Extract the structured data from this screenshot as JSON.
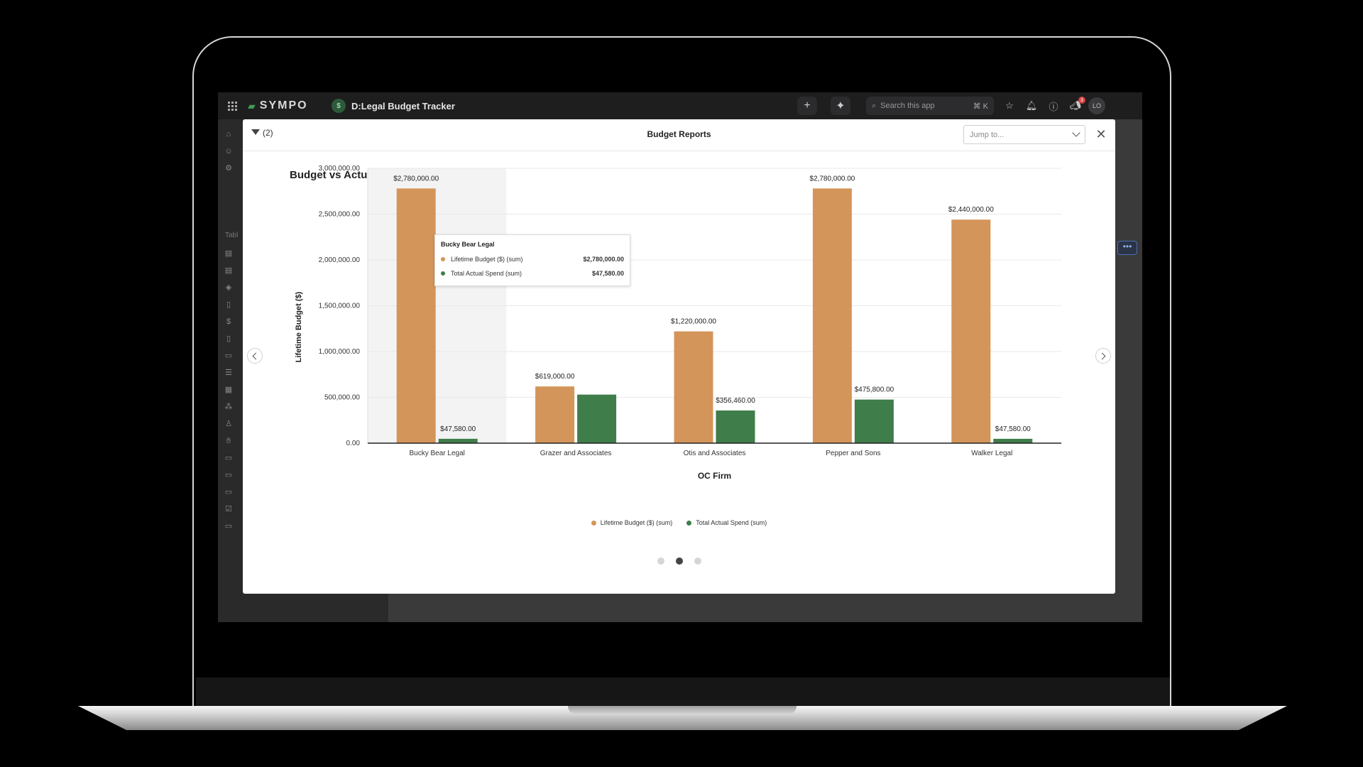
{
  "app": {
    "brand": "SYMPO",
    "title": "D:Legal Budget Tracker",
    "search_placeholder": "Search this app",
    "search_shortcut": "⌘ K",
    "notification_count": "3",
    "user_initials": "LO",
    "sidebar_section_label": "Tabl"
  },
  "modal": {
    "title": "Budget Reports",
    "filter_count": "(2)",
    "jump_placeholder": "Jump to...",
    "pager": {
      "total": 3,
      "active_index": 1
    }
  },
  "colors": {
    "budget": "#d4955a",
    "spend": "#3f7d4a",
    "hover_band": "#f3f3f3"
  },
  "chart_data": {
    "type": "bar",
    "title": "Budget vs Actual by OC Firm",
    "xlabel": "OC Firm",
    "ylabel": "Lifetime Budget ($)",
    "ylim": [
      0,
      3000000
    ],
    "yticks": [
      "0.00",
      "500,000.00",
      "1,000,000.00",
      "1,500,000.00",
      "2,000,000.00",
      "2,500,000.00",
      "3,000,000.00"
    ],
    "categories": [
      "Bucky Bear Legal",
      "Grazer and Associates",
      "Otis and Associates",
      "Pepper and Sons",
      "Walker Legal"
    ],
    "series": [
      {
        "name": "Lifetime Budget ($) (sum)",
        "values": [
          2780000,
          619000,
          1220000,
          2780000,
          2440000
        ],
        "labels": [
          "$2,780,000.00",
          "$619,000.00",
          "$1,220,000.00",
          "$2,780,000.00",
          "$2,440,000.00"
        ]
      },
      {
        "name": "Total Actual Spend (sum)",
        "values": [
          47580,
          530000,
          356460,
          475800,
          47580
        ],
        "labels": [
          "$47,580.00",
          "",
          "$356,460.00",
          "$475,800.00",
          "$47,580.00"
        ]
      }
    ],
    "grid": true,
    "legend_position": "bottom-center",
    "tooltip": {
      "category": "Bucky Bear Legal",
      "rows": [
        {
          "name": "Lifetime Budget ($) (sum)",
          "value": "$2,780,000.00"
        },
        {
          "name": "Total Actual Spend (sum)",
          "value": "$47,580.00"
        }
      ]
    }
  }
}
